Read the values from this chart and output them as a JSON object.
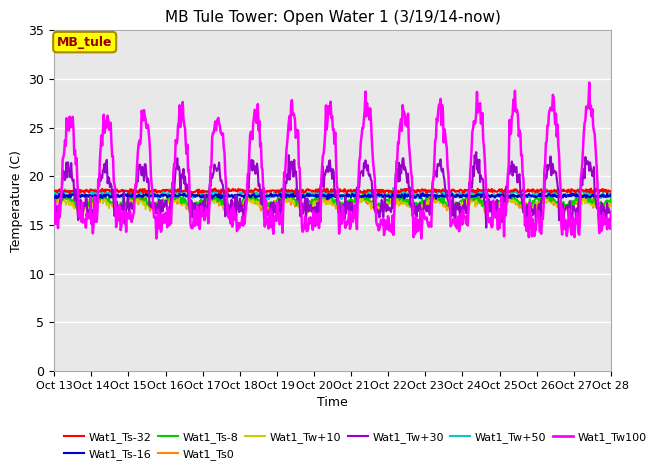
{
  "title": "MB Tule Tower: Open Water 1 (3/19/14-now)",
  "xlabel": "Time",
  "ylabel": "Temperature (C)",
  "ylim": [
    0,
    35
  ],
  "yticks": [
    0,
    5,
    10,
    15,
    20,
    25,
    30,
    35
  ],
  "xtick_labels": [
    "Oct 13",
    "Oct 14",
    "Oct 15",
    "Oct 16",
    "Oct 17",
    "Oct 18",
    "Oct 19",
    "Oct 20",
    "Oct 21",
    "Oct 22",
    "Oct 23",
    "Oct 24",
    "Oct 25",
    "Oct 26",
    "Oct 27",
    "Oct 28"
  ],
  "figure_bg": "#ffffff",
  "plot_bg": "#e8e8e8",
  "grid_color": "#ffffff",
  "series": {
    "Wat1_Ts-32": {
      "color": "#ff0000",
      "lw": 1.5,
      "zorder": 5
    },
    "Wat1_Ts-16": {
      "color": "#0000cc",
      "lw": 1.5,
      "zorder": 5
    },
    "Wat1_Ts-8": {
      "color": "#00cc00",
      "lw": 1.2,
      "zorder": 4
    },
    "Wat1_Ts0": {
      "color": "#ff8800",
      "lw": 1.2,
      "zorder": 4
    },
    "Wat1_Tw+10": {
      "color": "#cccc00",
      "lw": 1.2,
      "zorder": 4
    },
    "Wat1_Tw+30": {
      "color": "#9900cc",
      "lw": 1.5,
      "zorder": 6
    },
    "Wat1_Tw+50": {
      "color": "#00cccc",
      "lw": 1.5,
      "zorder": 5
    },
    "Wat1_Tw100": {
      "color": "#ff00ff",
      "lw": 1.8,
      "zorder": 7
    }
  },
  "annotation_label": "MB_tule",
  "legend_rows": [
    [
      "Wat1_Ts-32",
      "Wat1_Ts-16",
      "Wat1_Ts-8",
      "Wat1_Ts0",
      "Wat1_Tw+10",
      "Wat1_Tw+30"
    ],
    [
      "Wat1_Tw+50",
      "Wat1_Tw100"
    ]
  ]
}
